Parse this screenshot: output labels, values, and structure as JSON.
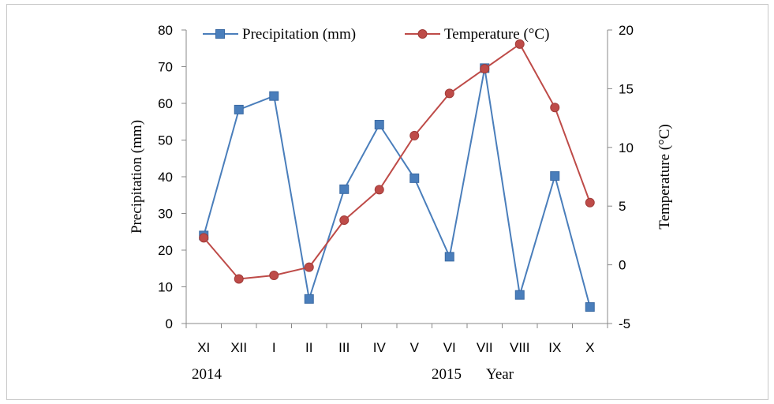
{
  "chart_data": {
    "type": "line",
    "categories": [
      "XI",
      "XII",
      "I",
      "II",
      "III",
      "IV",
      "V",
      "VI",
      "VII",
      "VIII",
      "IX",
      "X"
    ],
    "series": [
      {
        "name": "Precipitation (mm)",
        "axis": "left",
        "color": "#4a7ebb",
        "marker": "square",
        "values": [
          24,
          58.3,
          62,
          6.7,
          36.6,
          54.2,
          39.6,
          18.2,
          69.6,
          7.8,
          40.2,
          4.5
        ]
      },
      {
        "name": "Temperature (°C)",
        "axis": "right",
        "color": "#be4b48",
        "marker": "circle",
        "values": [
          2.3,
          -1.2,
          -0.9,
          -0.2,
          3.8,
          6.4,
          11,
          14.6,
          16.7,
          18.8,
          13.4,
          5.3
        ]
      }
    ],
    "y_left": {
      "label": "Precipitation (mm)",
      "range": [
        0,
        80
      ],
      "ticks": [
        "0",
        "10",
        "20",
        "30",
        "40",
        "50",
        "60",
        "70",
        "80"
      ]
    },
    "y_right": {
      "label": "Temperature (°C)",
      "range": [
        -5,
        20
      ],
      "ticks": [
        "-5",
        "0",
        "5",
        "10",
        "15",
        "20"
      ]
    },
    "x_sublabels": {
      "year_2014": "2014",
      "year_2015": "2015",
      "year_word": "Year"
    },
    "legend_position": "top",
    "grid": false
  }
}
